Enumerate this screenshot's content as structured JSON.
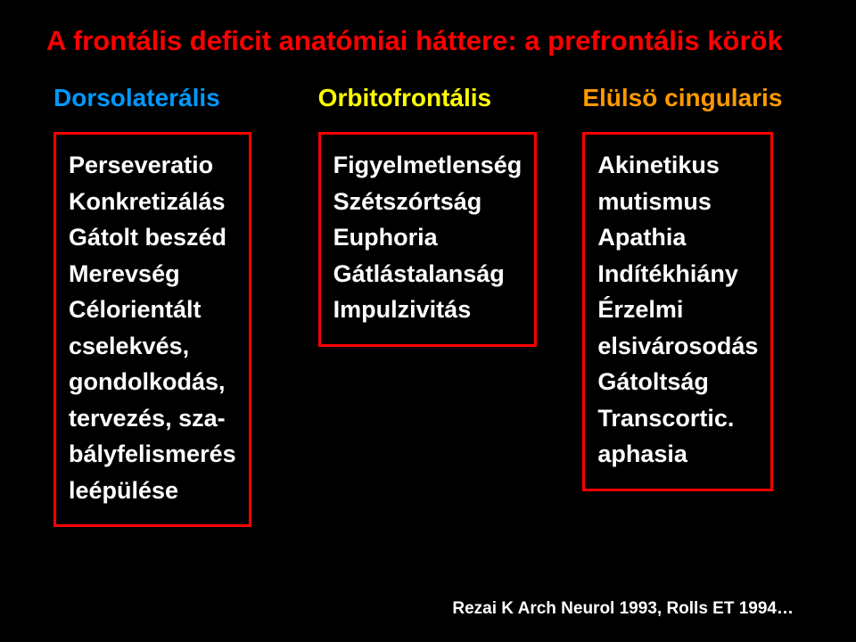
{
  "title": "A frontális deficit anatómiai háttere: a prefrontális körök",
  "columns": {
    "c1": {
      "header": "Dorsolaterális",
      "items": [
        "Perseveratio",
        "Konkretizálás",
        "Gátolt beszéd",
        "Merevség",
        "Célorientált",
        "cselekvés,",
        "gondolkodás,",
        "tervezés, sza-",
        "bályfelismerés",
        "leépülése"
      ]
    },
    "c2": {
      "header": "Orbitofrontális",
      "items": [
        "Figyelmetlenség",
        "Szétszórtság",
        "Euphoria",
        "Gátlástalanság",
        "Impulzivitás"
      ]
    },
    "c3": {
      "header": "Elülsö cingularis",
      "items": [
        "Akinetikus",
        "mutismus",
        "Apathia",
        "Indítékhiány",
        "Érzelmi",
        "elsivárosodás",
        "Gátoltság",
        "Transcortic.",
        "aphasia"
      ]
    }
  },
  "citation": "Rezai K Arch Neurol 1993, Rolls ET 1994…",
  "style": {
    "background": "#000000",
    "title_color": "#ff0000",
    "box_border": "#ff0000",
    "text_color": "#ffffff",
    "header_colors": {
      "c1": "#0099ff",
      "c2": "#ffff00",
      "c3": "#ff9900"
    },
    "title_fontsize": 31,
    "header_fontsize": 28,
    "item_fontsize": 27,
    "citation_fontsize": 19
  }
}
